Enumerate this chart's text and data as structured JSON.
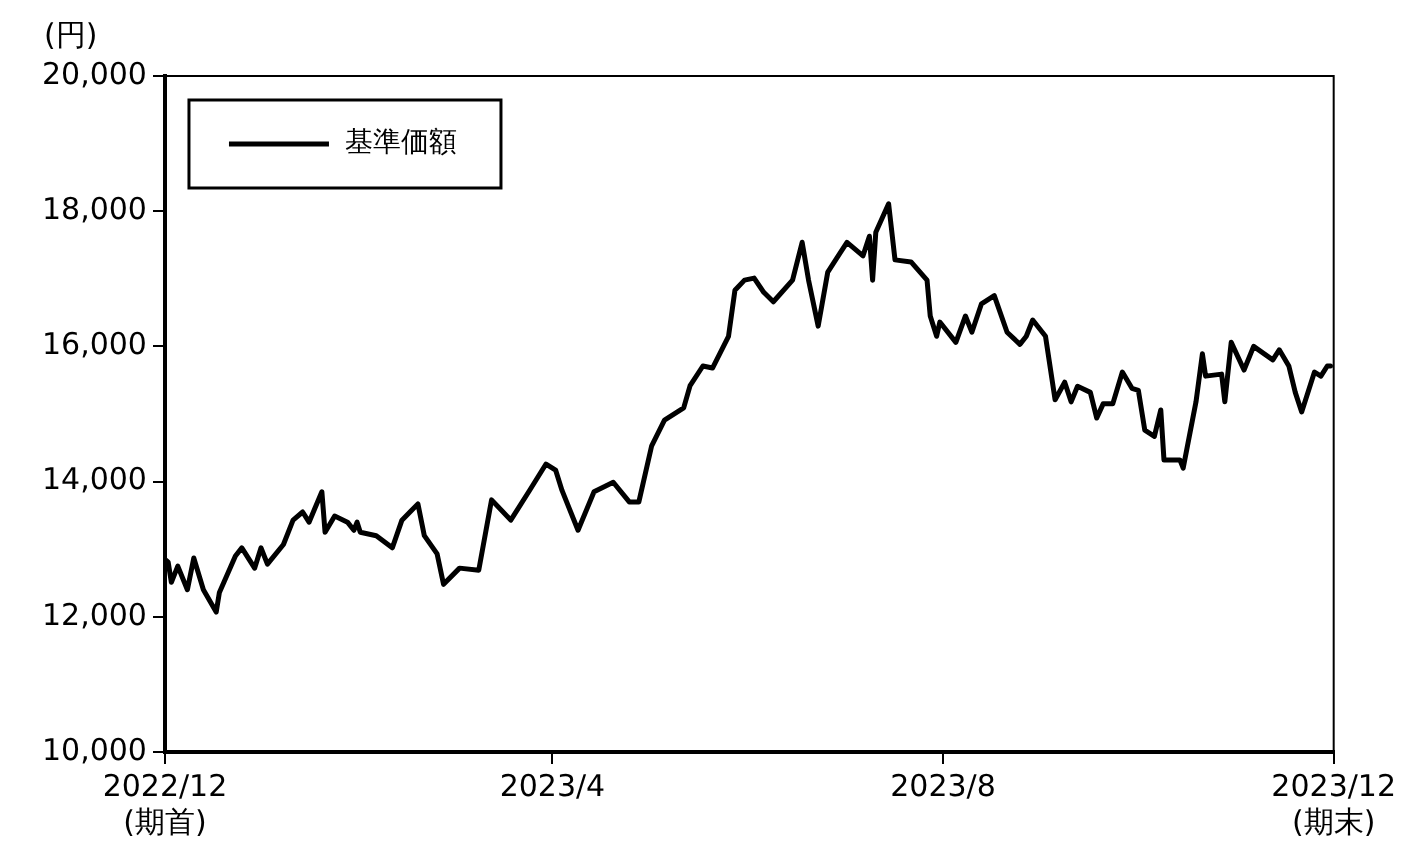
{
  "chart_data": {
    "type": "line",
    "ylabel": "(円)",
    "legend": "top left",
    "grid": false,
    "marker": "none",
    "line_style": "solid",
    "xlim": [
      "2022-12-07",
      "2023-12-07"
    ],
    "xticks": [
      {
        "value": "2022-12-07",
        "label": "2022/12\n(期首)"
      },
      {
        "value": "2023-04-07",
        "label": "2023/4"
      },
      {
        "value": "2023-08-07",
        "label": "2023/8"
      },
      {
        "value": "2023-12-07",
        "label": "2023/12\n(期末)"
      }
    ],
    "ylim": [
      10000,
      20000
    ],
    "yticks": [
      {
        "value": 10000,
        "label": "10,000"
      },
      {
        "value": 12000,
        "label": "12,000"
      },
      {
        "value": 14000,
        "label": "14,000"
      },
      {
        "value": 16000,
        "label": "16,000"
      },
      {
        "value": 18000,
        "label": "18,000"
      },
      {
        "value": 20000,
        "label": "20,000"
      }
    ],
    "x": [
      "2022-12-07",
      "2022-12-08",
      "2022-12-09",
      "2022-12-11",
      "2022-12-14",
      "2022-12-16",
      "2022-12-19",
      "2022-12-23",
      "2022-12-24",
      "2022-12-29",
      "2022-12-31",
      "2023-01-04",
      "2023-01-06",
      "2023-01-08",
      "2023-01-13",
      "2023-01-16",
      "2023-01-19",
      "2023-01-21",
      "2023-01-25",
      "2023-01-26",
      "2023-01-29",
      "2023-02-02",
      "2023-02-04",
      "2023-02-05",
      "2023-02-06",
      "2023-02-11",
      "2023-02-16",
      "2023-02-19",
      "2023-02-24",
      "2023-02-26",
      "2023-03-02",
      "2023-03-04",
      "2023-03-09",
      "2023-03-15",
      "2023-03-19",
      "2023-03-25",
      "2023-03-31",
      "2023-04-05",
      "2023-04-08",
      "2023-04-10",
      "2023-04-15",
      "2023-04-20",
      "2023-04-26",
      "2023-05-01",
      "2023-05-04",
      "2023-05-08",
      "2023-05-12",
      "2023-05-18",
      "2023-05-20",
      "2023-05-24",
      "2023-05-27",
      "2023-06-01",
      "2023-06-03",
      "2023-06-06",
      "2023-06-09",
      "2023-06-12",
      "2023-06-15",
      "2023-06-21",
      "2023-06-24",
      "2023-06-26",
      "2023-06-29",
      "2023-07-02",
      "2023-07-08",
      "2023-07-13",
      "2023-07-15",
      "2023-07-16",
      "2023-07-17",
      "2023-07-21",
      "2023-07-23",
      "2023-07-28",
      "2023-08-02",
      "2023-08-03",
      "2023-08-05",
      "2023-08-06",
      "2023-08-11",
      "2023-08-14",
      "2023-08-16",
      "2023-08-19",
      "2023-08-23",
      "2023-08-27",
      "2023-08-31",
      "2023-09-02",
      "2023-09-04",
      "2023-09-08",
      "2023-09-11",
      "2023-09-14",
      "2023-09-16",
      "2023-09-18",
      "2023-09-22",
      "2023-09-24",
      "2023-09-26",
      "2023-09-29",
      "2023-10-02",
      "2023-10-05",
      "2023-10-07",
      "2023-10-09",
      "2023-10-12",
      "2023-10-14",
      "2023-10-15",
      "2023-10-20",
      "2023-10-21",
      "2023-10-25",
      "2023-10-27",
      "2023-10-28",
      "2023-11-02",
      "2023-11-03",
      "2023-11-05",
      "2023-11-09",
      "2023-11-12",
      "2023-11-18",
      "2023-11-20",
      "2023-11-23",
      "2023-11-25",
      "2023-11-27",
      "2023-12-01",
      "2023-12-03",
      "2023-12-05",
      "2023-12-06"
    ],
    "series": [
      {
        "name": "基準価額",
        "color": "#000000",
        "values": [
          12850,
          12810,
          12510,
          12750,
          12400,
          12870,
          12400,
          12070,
          12360,
          12900,
          13020,
          12720,
          13020,
          12780,
          13070,
          13430,
          13550,
          13400,
          13850,
          13250,
          13490,
          13400,
          13280,
          13400,
          13250,
          13200,
          13020,
          13430,
          13670,
          13200,
          12930,
          12480,
          12720,
          12690,
          13730,
          13430,
          13880,
          14260,
          14170,
          13870,
          13280,
          13850,
          13990,
          13700,
          13700,
          14530,
          14910,
          15090,
          15420,
          15710,
          15680,
          16150,
          16830,
          16980,
          17010,
          16800,
          16660,
          16980,
          17540,
          16980,
          16300,
          17100,
          17540,
          17340,
          17630,
          16980,
          17690,
          18110,
          17280,
          17250,
          16980,
          16450,
          16150,
          16360,
          16060,
          16450,
          16210,
          16630,
          16750,
          16210,
          16030,
          16150,
          16390,
          16150,
          15210,
          15470,
          15180,
          15410,
          15320,
          14940,
          15150,
          15150,
          15620,
          15380,
          15350,
          14760,
          14670,
          15060,
          14320,
          14320,
          14200,
          15180,
          15890,
          15560,
          15590,
          15180,
          16060,
          15650,
          16000,
          15800,
          15950,
          15710,
          15320,
          15030,
          15620,
          15560,
          15710,
          15710
        ]
      }
    ]
  }
}
